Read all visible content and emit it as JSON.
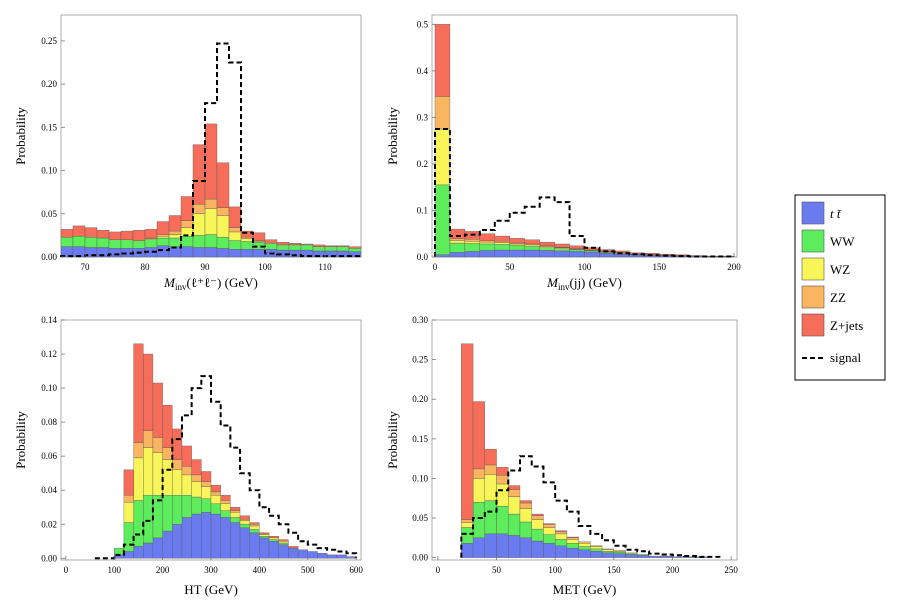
{
  "chart_data": [
    {
      "type": "histogram",
      "stacked": true,
      "xlabel": "M_inv(ℓ⁺ℓ⁻) (GeV)",
      "xlabel_main": "M",
      "xlabel_sub": "inv",
      "xlabel_rest": "(ℓ⁺ℓ⁻) (GeV)",
      "ylabel": "Probability",
      "xlim": [
        66,
        116
      ],
      "ylim": [
        0,
        0.28
      ],
      "xticks": [
        70,
        80,
        90,
        100,
        110
      ],
      "yticks": [
        0.0,
        0.05,
        0.1,
        0.15,
        0.2,
        0.25
      ],
      "ytick_labels": [
        "0.00",
        "0.05",
        "0.10",
        "0.15",
        "0.20",
        "0.25"
      ],
      "bin_edges": [
        66,
        68,
        70,
        72,
        74,
        76,
        78,
        80,
        82,
        84,
        86,
        88,
        90,
        92,
        94,
        96,
        98,
        100,
        102,
        104,
        106,
        108,
        110,
        112,
        114,
        116
      ],
      "series": [
        {
          "name": "tt",
          "values": [
            0.012,
            0.012,
            0.011,
            0.011,
            0.01,
            0.01,
            0.01,
            0.011,
            0.013,
            0.012,
            0.012,
            0.011,
            0.011,
            0.01,
            0.009,
            0.009,
            0.009,
            0.009,
            0.008,
            0.008,
            0.008,
            0.007,
            0.007,
            0.007,
            0.006
          ]
        },
        {
          "name": "WW",
          "values": [
            0.011,
            0.012,
            0.012,
            0.011,
            0.01,
            0.01,
            0.009,
            0.009,
            0.009,
            0.01,
            0.012,
            0.014,
            0.015,
            0.013,
            0.01,
            0.009,
            0.008,
            0.007,
            0.006,
            0.006,
            0.006,
            0.005,
            0.005,
            0.005,
            0.004
          ]
        },
        {
          "name": "WZ",
          "values": [
            0.0,
            0.0,
            0.0,
            0.0,
            0.0,
            0.0,
            0.0,
            0.001,
            0.002,
            0.004,
            0.01,
            0.025,
            0.03,
            0.025,
            0.01,
            0.003,
            0.001,
            0.0,
            0.0,
            0.0,
            0.0,
            0.0,
            0.0,
            0.0,
            0.0
          ]
        },
        {
          "name": "ZZ",
          "values": [
            0.0,
            0.0,
            0.0,
            0.0,
            0.0,
            0.0,
            0.0,
            0.001,
            0.002,
            0.004,
            0.008,
            0.011,
            0.011,
            0.009,
            0.005,
            0.002,
            0.001,
            0.0,
            0.0,
            0.0,
            0.0,
            0.0,
            0.0,
            0.0,
            0.0
          ]
        },
        {
          "name": "Z+jets",
          "values": [
            0.009,
            0.012,
            0.011,
            0.009,
            0.009,
            0.01,
            0.012,
            0.01,
            0.015,
            0.018,
            0.028,
            0.069,
            0.087,
            0.052,
            0.024,
            0.007,
            0.009,
            0.004,
            0.003,
            0.002,
            0.001,
            0.002,
            0.001,
            0.001,
            0.002
          ]
        }
      ],
      "signal": [
        0.001,
        0.001,
        0.002,
        0.002,
        0.003,
        0.004,
        0.005,
        0.006,
        0.008,
        0.011,
        0.025,
        0.088,
        0.178,
        0.247,
        0.225,
        0.028,
        0.012,
        0.004,
        0.003,
        0.002,
        0.001,
        0.001,
        0.001,
        0.001,
        0.001
      ]
    },
    {
      "type": "histogram",
      "stacked": true,
      "xlabel": "M_inv(jj) (GeV)",
      "xlabel_main": "M",
      "xlabel_sub": "inv",
      "xlabel_rest": "(jj) (GeV)",
      "ylabel": "Probability",
      "xlim": [
        -2,
        202
      ],
      "ylim": [
        0,
        0.52
      ],
      "xticks": [
        0,
        50,
        100,
        150,
        200
      ],
      "yticks": [
        0.0,
        0.1,
        0.2,
        0.3,
        0.4,
        0.5
      ],
      "ytick_labels": [
        "0.0",
        "0.1",
        "0.2",
        "0.3",
        "0.4",
        "0.5"
      ],
      "bin_edges": [
        0,
        10,
        20,
        30,
        40,
        50,
        60,
        70,
        80,
        90,
        100,
        110,
        120,
        130,
        140,
        150,
        160,
        170,
        180,
        190,
        200
      ],
      "series": [
        {
          "name": "tt",
          "values": [
            0.005,
            0.01,
            0.012,
            0.014,
            0.015,
            0.015,
            0.015,
            0.014,
            0.013,
            0.012,
            0.01,
            0.008,
            0.006,
            0.005,
            0.004,
            0.003,
            0.002,
            0.002,
            0.001,
            0.001
          ]
        },
        {
          "name": "WW",
          "values": [
            0.15,
            0.02,
            0.017,
            0.014,
            0.012,
            0.01,
            0.008,
            0.006,
            0.005,
            0.004,
            0.003,
            0.002,
            0.002,
            0.001,
            0.001,
            0.001,
            0.001,
            0.0,
            0.0,
            0.0
          ]
        },
        {
          "name": "WZ",
          "values": [
            0.12,
            0.005,
            0.005,
            0.004,
            0.004,
            0.003,
            0.003,
            0.002,
            0.002,
            0.001,
            0.001,
            0.001,
            0.001,
            0.0,
            0.0,
            0.0,
            0.0,
            0.0,
            0.0,
            0.0
          ]
        },
        {
          "name": "ZZ",
          "values": [
            0.07,
            0.004,
            0.004,
            0.003,
            0.003,
            0.002,
            0.002,
            0.002,
            0.001,
            0.001,
            0.001,
            0.001,
            0.0,
            0.0,
            0.0,
            0.0,
            0.0,
            0.0,
            0.0,
            0.0
          ]
        },
        {
          "name": "Z+jets",
          "values": [
            0.155,
            0.021,
            0.017,
            0.015,
            0.011,
            0.01,
            0.009,
            0.008,
            0.007,
            0.006,
            0.005,
            0.004,
            0.004,
            0.003,
            0.003,
            0.002,
            0.002,
            0.001,
            0.001,
            0.001
          ]
        }
      ],
      "signal": [
        0.275,
        0.045,
        0.048,
        0.058,
        0.078,
        0.095,
        0.108,
        0.128,
        0.118,
        0.045,
        0.02,
        0.012,
        0.008,
        0.006,
        0.004,
        0.003,
        0.002,
        0.001,
        0.001,
        0.001
      ]
    },
    {
      "type": "histogram",
      "stacked": true,
      "xlabel": "HT (GeV)",
      "ylabel": "Probability",
      "xlim": [
        -10,
        610
      ],
      "ylim": [
        -0.001,
        0.14
      ],
      "xticks": [
        0,
        100,
        200,
        300,
        400,
        500,
        600
      ],
      "yticks": [
        0.0,
        0.02,
        0.04,
        0.06,
        0.08,
        0.1,
        0.12,
        0.14
      ],
      "ytick_labels": [
        "0.00",
        "0.02",
        "0.04",
        "0.06",
        "0.08",
        "0.10",
        "0.12",
        "0.14"
      ],
      "bin_edges": [
        60,
        80,
        100,
        120,
        140,
        160,
        180,
        200,
        220,
        240,
        260,
        280,
        300,
        320,
        340,
        360,
        380,
        400,
        420,
        440,
        460,
        480,
        500,
        520,
        540,
        560,
        580,
        600
      ],
      "series": [
        {
          "name": "tt",
          "values": [
            0.0,
            0.0,
            0.002,
            0.004,
            0.007,
            0.009,
            0.012,
            0.016,
            0.02,
            0.024,
            0.026,
            0.027,
            0.026,
            0.024,
            0.021,
            0.018,
            0.015,
            0.012,
            0.01,
            0.008,
            0.006,
            0.005,
            0.004,
            0.003,
            0.002,
            0.002,
            0.001
          ]
        },
        {
          "name": "WW",
          "values": [
            0.0,
            0.0,
            0.004,
            0.017,
            0.027,
            0.028,
            0.025,
            0.021,
            0.017,
            0.013,
            0.01,
            0.008,
            0.006,
            0.004,
            0.003,
            0.002,
            0.002,
            0.001,
            0.001,
            0.001,
            0.0,
            0.0,
            0.0,
            0.0,
            0.0,
            0.0,
            0.0
          ]
        },
        {
          "name": "WZ",
          "values": [
            0.0,
            0.0,
            0.0,
            0.012,
            0.025,
            0.028,
            0.025,
            0.021,
            0.015,
            0.012,
            0.009,
            0.007,
            0.005,
            0.004,
            0.003,
            0.002,
            0.002,
            0.001,
            0.001,
            0.001,
            0.0,
            0.0,
            0.0,
            0.0,
            0.0,
            0.0,
            0.0
          ]
        },
        {
          "name": "ZZ",
          "values": [
            0.0,
            0.0,
            0.0,
            0.004,
            0.009,
            0.01,
            0.009,
            0.007,
            0.006,
            0.005,
            0.004,
            0.003,
            0.002,
            0.002,
            0.001,
            0.001,
            0.001,
            0.0,
            0.0,
            0.0,
            0.0,
            0.0,
            0.0,
            0.0,
            0.0,
            0.0,
            0.0
          ]
        },
        {
          "name": "Z+jets",
          "values": [
            0.0,
            0.0,
            0.0,
            0.015,
            0.058,
            0.045,
            0.032,
            0.025,
            0.018,
            0.012,
            0.009,
            0.006,
            0.004,
            0.003,
            0.002,
            0.002,
            0.001,
            0.001,
            0.001,
            0.001,
            0.001,
            0.0,
            0.0,
            0.0,
            0.0,
            0.0,
            0.0
          ]
        }
      ],
      "signal": [
        0.0,
        0.0,
        0.002,
        0.008,
        0.014,
        0.022,
        0.034,
        0.052,
        0.07,
        0.084,
        0.1,
        0.107,
        0.092,
        0.078,
        0.065,
        0.05,
        0.04,
        0.03,
        0.025,
        0.02,
        0.015,
        0.01,
        0.008,
        0.006,
        0.005,
        0.004,
        0.003
      ]
    },
    {
      "type": "histogram",
      "stacked": true,
      "xlabel": "MET (GeV)",
      "ylabel": "Probability",
      "xlim": [
        -5,
        255
      ],
      "ylim": [
        -0.003,
        0.3
      ],
      "xticks": [
        0,
        50,
        100,
        150,
        200,
        250
      ],
      "yticks": [
        0.0,
        0.05,
        0.1,
        0.15,
        0.2,
        0.25,
        0.3
      ],
      "ytick_labels": [
        "0.00",
        "0.05",
        "0.10",
        "0.15",
        "0.20",
        "0.25",
        "0.30"
      ],
      "bin_edges": [
        20,
        30,
        40,
        50,
        60,
        70,
        80,
        90,
        100,
        110,
        120,
        130,
        140,
        150,
        160,
        170,
        180,
        190,
        200,
        210,
        220,
        230,
        240
      ],
      "series": [
        {
          "name": "tt",
          "values": [
            0.018,
            0.025,
            0.03,
            0.03,
            0.028,
            0.025,
            0.021,
            0.018,
            0.015,
            0.012,
            0.01,
            0.008,
            0.006,
            0.005,
            0.004,
            0.003,
            0.002,
            0.002,
            0.001,
            0.001,
            0.001,
            0.0
          ]
        },
        {
          "name": "WW",
          "values": [
            0.02,
            0.045,
            0.042,
            0.035,
            0.027,
            0.02,
            0.015,
            0.011,
            0.008,
            0.006,
            0.004,
            0.003,
            0.002,
            0.002,
            0.001,
            0.001,
            0.0,
            0.0,
            0.0,
            0.0,
            0.0,
            0.0
          ]
        },
        {
          "name": "WZ",
          "values": [
            0.006,
            0.03,
            0.033,
            0.028,
            0.022,
            0.017,
            0.012,
            0.009,
            0.007,
            0.005,
            0.004,
            0.003,
            0.002,
            0.001,
            0.001,
            0.0,
            0.0,
            0.0,
            0.0,
            0.0,
            0.0,
            0.0
          ]
        },
        {
          "name": "ZZ",
          "values": [
            0.004,
            0.012,
            0.012,
            0.011,
            0.009,
            0.007,
            0.005,
            0.004,
            0.003,
            0.002,
            0.002,
            0.001,
            0.001,
            0.001,
            0.0,
            0.0,
            0.0,
            0.0,
            0.0,
            0.0,
            0.0,
            0.0
          ]
        },
        {
          "name": "Z+jets",
          "values": [
            0.222,
            0.085,
            0.02,
            0.01,
            0.005,
            0.003,
            0.002,
            0.001,
            0.001,
            0.001,
            0.0,
            0.0,
            0.0,
            0.0,
            0.0,
            0.0,
            0.0,
            0.0,
            0.0,
            0.0,
            0.0,
            0.0
          ]
        }
      ],
      "signal": [
        0.03,
        0.05,
        0.058,
        0.085,
        0.11,
        0.128,
        0.115,
        0.095,
        0.072,
        0.058,
        0.04,
        0.03,
        0.022,
        0.015,
        0.01,
        0.008,
        0.005,
        0.004,
        0.003,
        0.002,
        0.001,
        0.001
      ]
    }
  ],
  "legend": {
    "items": [
      {
        "key": "tt",
        "label": "t t̄",
        "color": "#6a7bf0"
      },
      {
        "key": "WW",
        "label": "WW",
        "color": "#5cec5c"
      },
      {
        "key": "WZ",
        "label": "WZ",
        "color": "#f7f558"
      },
      {
        "key": "ZZ",
        "label": "ZZ",
        "color": "#f9b55f"
      },
      {
        "key": "Z+jets",
        "label": "Z+jets",
        "color": "#f66d5a"
      }
    ],
    "signal_label": "signal"
  }
}
